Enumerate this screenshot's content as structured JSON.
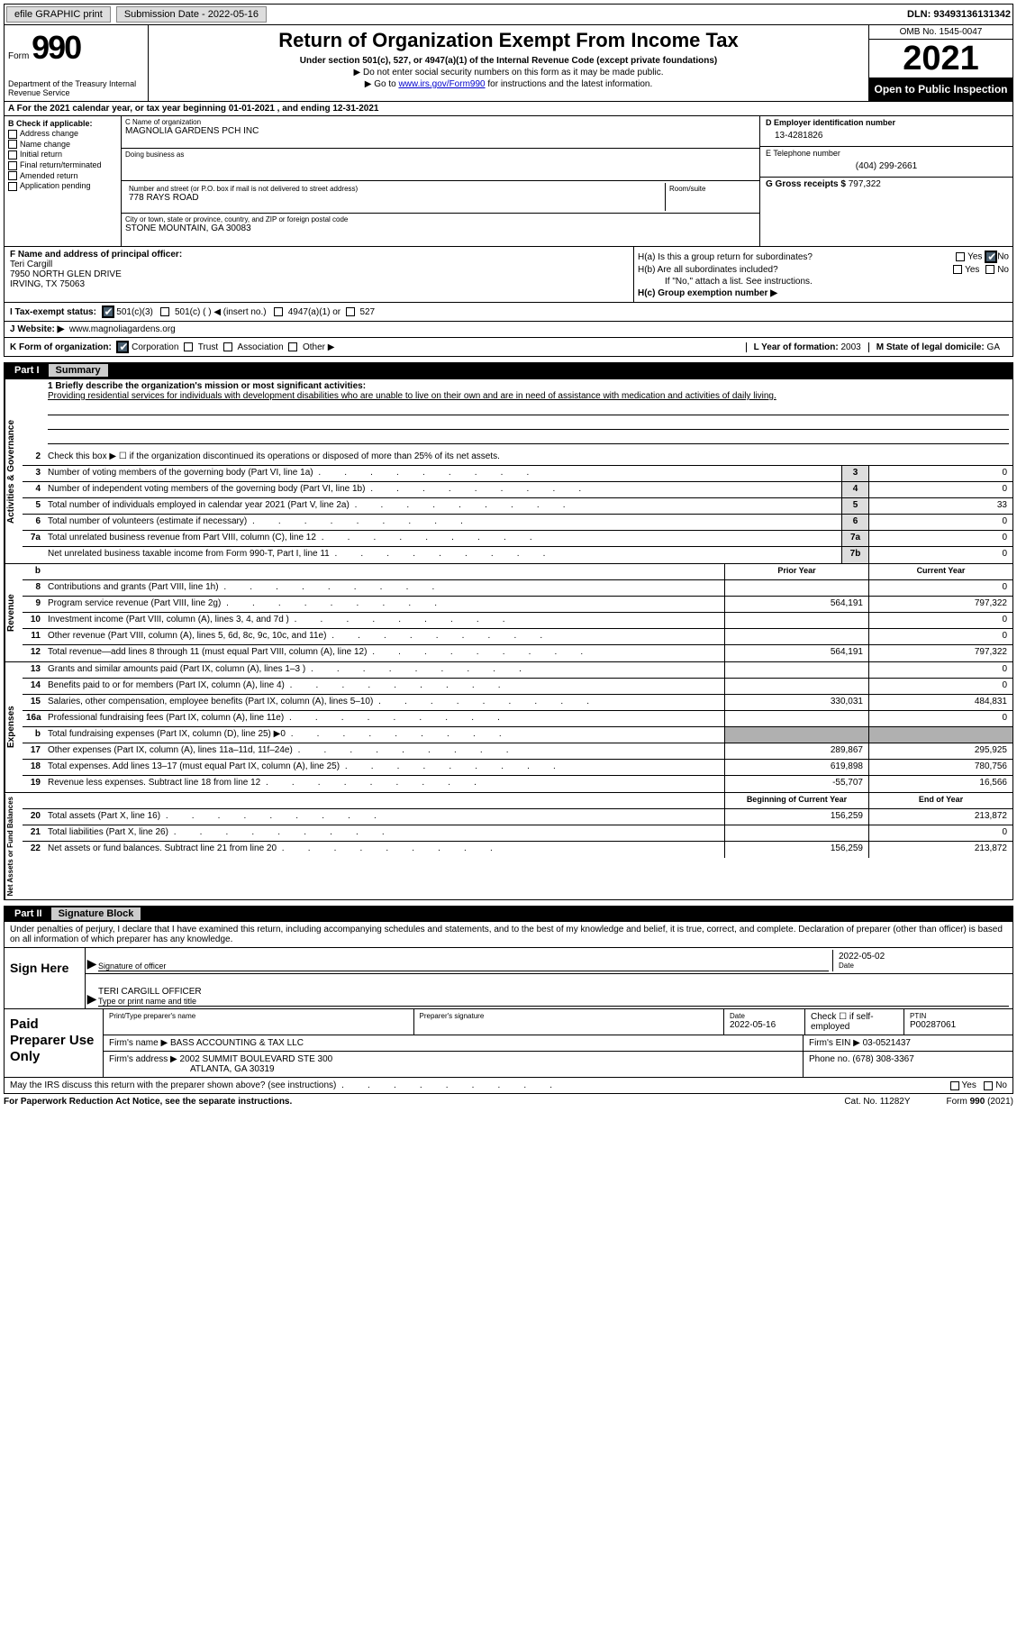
{
  "topbar": {
    "efile": "efile GRAPHIC print",
    "subdate_label": "Submission Date - ",
    "subdate": "2022-05-16",
    "dln_label": "DLN: ",
    "dln": "93493136131342"
  },
  "header": {
    "form_label": "Form",
    "form_number": "990",
    "dept": "Department of the Treasury\nInternal Revenue Service",
    "title": "Return of Organization Exempt From Income Tax",
    "sub": "Under section 501(c), 527, or 4947(a)(1) of the Internal Revenue Code (except private foundations)",
    "note1": "Do not enter social security numbers on this form as it may be made public.",
    "note2_pre": "Go to ",
    "note2_link": "www.irs.gov/Form990",
    "note2_post": " for instructions and the latest information.",
    "omb": "OMB No. 1545-0047",
    "year": "2021",
    "open_pub": "Open to Public Inspection"
  },
  "calyear": {
    "text_a": "A For the 2021 calendar year, or tax year beginning ",
    "begin": "01-01-2021",
    "text_b": "  , and ending ",
    "end": "12-31-2021"
  },
  "B": {
    "label": "B Check if applicable:",
    "items": [
      "Address change",
      "Name change",
      "Initial return",
      "Final return/terminated",
      "Amended return",
      "Application pending"
    ]
  },
  "C": {
    "name_lbl": "C Name of organization",
    "name": "MAGNOLIA GARDENS PCH INC",
    "dba_lbl": "Doing business as",
    "dba": "",
    "street_lbl": "Number and street (or P.O. box if mail is not delivered to street address)",
    "street": "778 RAYS ROAD",
    "room_lbl": "Room/suite",
    "room": "",
    "city_lbl": "City or town, state or province, country, and ZIP or foreign postal code",
    "city": "STONE MOUNTAIN, GA  30083"
  },
  "D": {
    "ein_lbl": "D Employer identification number",
    "ein": "13-4281826",
    "tel_lbl": "E Telephone number",
    "tel": "(404) 299-2661",
    "gross_lbl": "G Gross receipts $ ",
    "gross": "797,322"
  },
  "F": {
    "lbl": "F Name and address of principal officer:",
    "name": "Teri Cargill",
    "addr1": "7950 NORTH GLEN DRIVE",
    "addr2": "IRVING, TX  75063"
  },
  "H": {
    "a": "H(a)  Is this a group return for subordinates?",
    "b": "H(b)  Are all subordinates included?",
    "b2": "If \"No,\" attach a list. See instructions.",
    "c": "H(c)  Group exemption number ▶",
    "yes": "Yes",
    "no": "No"
  },
  "I": {
    "lbl": "I  Tax-exempt status:",
    "a": "501(c)(3)",
    "b": "501(c) (  ) ◀ (insert no.)",
    "c": "4947(a)(1) or",
    "d": "527"
  },
  "J": {
    "lbl": "J Website: ▶",
    "val": "www.magnoliagardens.org"
  },
  "K": {
    "lbl": "K Form of organization:",
    "a": "Corporation",
    "b": "Trust",
    "c": "Association",
    "d": "Other ▶",
    "L_lbl": "L Year of formation: ",
    "L_val": "2003",
    "M_lbl": "M State of legal domicile: ",
    "M_val": "GA"
  },
  "partI": {
    "num": "Part I",
    "title": "Summary"
  },
  "summary": {
    "mission_lbl": "1  Briefly describe the organization's mission or most significant activities:",
    "mission": "Providing residential services for individuals with development disabilities who are unable to live on their own and are in need of assistance with medication and activities of daily living.",
    "line2": "Check this box ▶ ☐ if the organization discontinued its operations or disposed of more than 25% of its net assets.",
    "vtab1": "Activities & Governance",
    "vtab2": "Revenue",
    "vtab3": "Expenses",
    "vtab4": "Net Assets or Fund Balances",
    "col_prior": "Prior Year",
    "col_curr": "Current Year",
    "col_begin": "Beginning of Current Year",
    "col_end": "End of Year",
    "rows_gov": [
      {
        "n": "3",
        "d": "Number of voting members of the governing body (Part VI, line 1a)",
        "box": "3",
        "v": "0"
      },
      {
        "n": "4",
        "d": "Number of independent voting members of the governing body (Part VI, line 1b)",
        "box": "4",
        "v": "0"
      },
      {
        "n": "5",
        "d": "Total number of individuals employed in calendar year 2021 (Part V, line 2a)",
        "box": "5",
        "v": "33"
      },
      {
        "n": "6",
        "d": "Total number of volunteers (estimate if necessary)",
        "box": "6",
        "v": "0"
      },
      {
        "n": "7a",
        "d": "Total unrelated business revenue from Part VIII, column (C), line 12",
        "box": "7a",
        "v": "0"
      },
      {
        "n": "",
        "d": "Net unrelated business taxable income from Form 990-T, Part I, line 11",
        "box": "7b",
        "v": "0"
      }
    ],
    "rows_rev": [
      {
        "n": "8",
        "d": "Contributions and grants (Part VIII, line 1h)",
        "p": "",
        "c": "0"
      },
      {
        "n": "9",
        "d": "Program service revenue (Part VIII, line 2g)",
        "p": "564,191",
        "c": "797,322"
      },
      {
        "n": "10",
        "d": "Investment income (Part VIII, column (A), lines 3, 4, and 7d )",
        "p": "",
        "c": "0"
      },
      {
        "n": "11",
        "d": "Other revenue (Part VIII, column (A), lines 5, 6d, 8c, 9c, 10c, and 11e)",
        "p": "",
        "c": "0"
      },
      {
        "n": "12",
        "d": "Total revenue—add lines 8 through 11 (must equal Part VIII, column (A), line 12)",
        "p": "564,191",
        "c": "797,322"
      }
    ],
    "rows_exp": [
      {
        "n": "13",
        "d": "Grants and similar amounts paid (Part IX, column (A), lines 1–3 )",
        "p": "",
        "c": "0"
      },
      {
        "n": "14",
        "d": "Benefits paid to or for members (Part IX, column (A), line 4)",
        "p": "",
        "c": "0"
      },
      {
        "n": "15",
        "d": "Salaries, other compensation, employee benefits (Part IX, column (A), lines 5–10)",
        "p": "330,031",
        "c": "484,831"
      },
      {
        "n": "16a",
        "d": "Professional fundraising fees (Part IX, column (A), line 11e)",
        "p": "",
        "c": "0"
      },
      {
        "n": "b",
        "d": "Total fundraising expenses (Part IX, column (D), line 25) ▶0",
        "p": "SHADE",
        "c": "SHADE"
      },
      {
        "n": "17",
        "d": "Other expenses (Part IX, column (A), lines 11a–11d, 11f–24e)",
        "p": "289,867",
        "c": "295,925"
      },
      {
        "n": "18",
        "d": "Total expenses. Add lines 13–17 (must equal Part IX, column (A), line 25)",
        "p": "619,898",
        "c": "780,756"
      },
      {
        "n": "19",
        "d": "Revenue less expenses. Subtract line 18 from line 12",
        "p": "-55,707",
        "c": "16,566"
      }
    ],
    "rows_net": [
      {
        "n": "20",
        "d": "Total assets (Part X, line 16)",
        "p": "156,259",
        "c": "213,872"
      },
      {
        "n": "21",
        "d": "Total liabilities (Part X, line 26)",
        "p": "",
        "c": "0"
      },
      {
        "n": "22",
        "d": "Net assets or fund balances. Subtract line 21 from line 20",
        "p": "156,259",
        "c": "213,872"
      }
    ],
    "b_row": "b"
  },
  "partII": {
    "num": "Part II",
    "title": "Signature Block"
  },
  "sig": {
    "decl": "Under penalties of perjury, I declare that I have examined this return, including accompanying schedules and statements, and to the best of my knowledge and belief, it is true, correct, and complete. Declaration of preparer (other than officer) is based on all information of which preparer has any knowledge.",
    "sign_here": "Sign Here",
    "sig_of_officer": "Signature of officer",
    "date": "2022-05-02",
    "date_lbl": "Date",
    "name_title": "TERI CARGILL  OFFICER",
    "name_lbl": "Type or print name and title"
  },
  "prep": {
    "title": "Paid Preparer Use Only",
    "print_lbl": "Print/Type preparer's name",
    "print_val": "",
    "sig_lbl": "Preparer's signature",
    "pdate_lbl": "Date",
    "pdate": "2022-05-16",
    "check_lbl": "Check ☐ if self-employed",
    "ptin_lbl": "PTIN",
    "ptin": "P00287061",
    "firm_name_lbl": "Firm's name    ▶",
    "firm_name": "BASS ACCOUNTING & TAX LLC",
    "firm_ein_lbl": "Firm's EIN ▶",
    "firm_ein": "03-0521437",
    "firm_addr_lbl": "Firm's address ▶",
    "firm_addr1": "2002 SUMMIT BOULEVARD STE 300",
    "firm_addr2": "ATLANTA, GA  30319",
    "phone_lbl": "Phone no. ",
    "phone": "(678) 308-3367"
  },
  "discuss": {
    "text": "May the IRS discuss this return with the preparer shown above? (see instructions)",
    "yes": "Yes",
    "no": "No"
  },
  "footer": {
    "l": "For Paperwork Reduction Act Notice, see the separate instructions.",
    "m": "Cat. No. 11282Y",
    "r": "Form 990 (2021)"
  }
}
